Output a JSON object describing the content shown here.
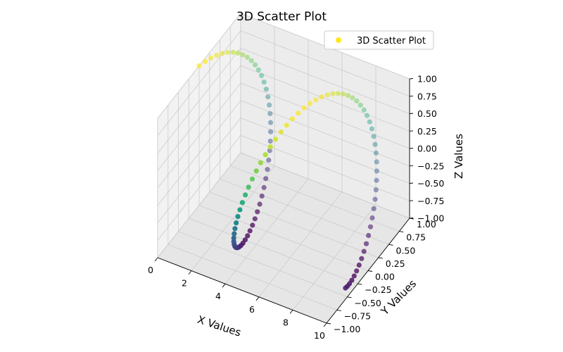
{
  "chart_data": {
    "type": "scatter",
    "title": "3D Scatter Plot",
    "xlabel": "X Values",
    "ylabel": "Y Values",
    "zlabel": "Z Values",
    "xlim": [
      0,
      10
    ],
    "ylim": [
      -1,
      1
    ],
    "zlim": [
      -1,
      1
    ],
    "x_ticks": [
      "0",
      "2",
      "4",
      "6",
      "8",
      "10"
    ],
    "y_ticks": [
      "−1.00",
      "−0.75",
      "−0.50",
      "−0.25",
      "0.00",
      "0.25",
      "0.50",
      "0.75",
      "1.00"
    ],
    "z_ticks": [
      "−1.00",
      "−0.75",
      "−0.50",
      "−0.25",
      "0.00",
      "0.25",
      "0.50",
      "0.75",
      "1.00"
    ],
    "grid": true,
    "legend": {
      "position": "top-right",
      "entries": [
        "3D Scatter Plot"
      ]
    },
    "colormap": "viridis",
    "series": [
      {
        "name": "3D Scatter Plot",
        "x": [
          0,
          10
        ],
        "y_function": "sin(x)",
        "z_function": "cos(x)",
        "points": 100,
        "color_by": "z"
      }
    ],
    "colors": {
      "legend_marker": "#fde725",
      "pane": "#f2f2f2",
      "grid": "#cccccc"
    }
  }
}
